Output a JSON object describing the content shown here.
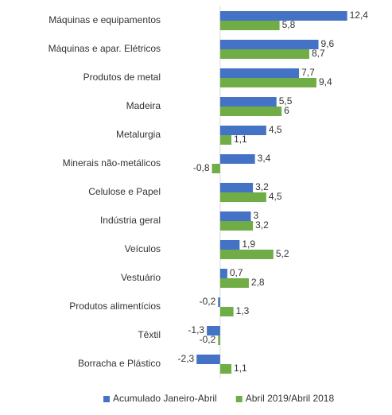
{
  "chart_data": {
    "type": "bar",
    "orientation": "horizontal",
    "categories": [
      "Máquinas e equipamentos",
      "Máquinas e apar. Elétricos",
      "Produtos de metal",
      "Madeira",
      "Metalurgia",
      "Minerais não-metálicos",
      "Celulose e Papel",
      "Indústria geral",
      "Veículos",
      "Vestuário",
      "Produtos alimentícios",
      "Têxtil",
      "Borracha e Plástico"
    ],
    "series": [
      {
        "name": "Acumulado Janeiro-Abril",
        "color": "#4472c4",
        "values": [
          12.4,
          9.6,
          7.7,
          5.5,
          4.5,
          3.4,
          3.2,
          3,
          1.9,
          0.7,
          -0.2,
          -1.3,
          -2.3
        ],
        "value_labels": [
          "12,4",
          "9,6",
          "7,7",
          "5,5",
          "4,5",
          "3,4",
          "3,2",
          "3",
          "1,9",
          "0,7",
          "-0,2",
          "-1,3",
          "-2,3"
        ]
      },
      {
        "name": "Abril 2019/Abril 2018",
        "color": "#70ad47",
        "values": [
          5.8,
          8.7,
          9.4,
          6,
          1.1,
          -0.8,
          4.5,
          3.2,
          5.2,
          2.8,
          1.3,
          -0.2,
          1.1
        ],
        "value_labels": [
          "5,8",
          "8,7",
          "9,4",
          "6",
          "1,1",
          "-0,8",
          "4,5",
          "3,2",
          "5,2",
          "2,8",
          "1,3",
          "-0,2",
          "1,1"
        ]
      }
    ],
    "xlim": [
      -5.5,
      16
    ],
    "legend": "bottom"
  }
}
